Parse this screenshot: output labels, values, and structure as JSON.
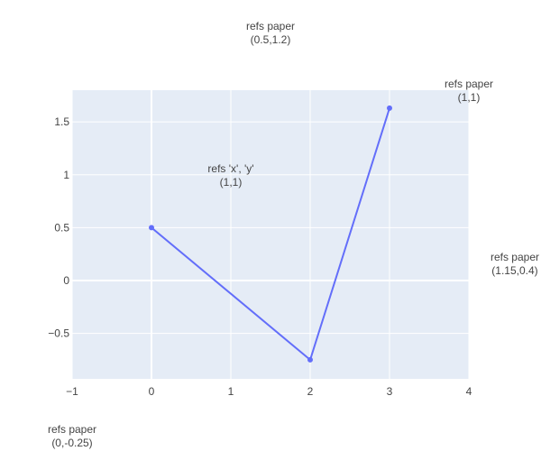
{
  "chart_data": {
    "type": "line",
    "title": "",
    "xlabel": "",
    "ylabel": "",
    "xlim": [
      -1,
      4
    ],
    "ylim": [
      -0.93,
      1.8
    ],
    "grid": true,
    "legend": "none",
    "colors": {
      "plot_bg": "#e5ecf6",
      "grid": "#ffffff",
      "line": "#636efa",
      "text": "#444444"
    },
    "x_ticks": [
      -1,
      0,
      1,
      2,
      3,
      4
    ],
    "x_tick_labels": [
      "−1",
      "0",
      "1",
      "2",
      "3",
      "4"
    ],
    "y_ticks": [
      -0.5,
      0,
      0.5,
      1,
      1.5
    ],
    "y_tick_labels": [
      "−0.5",
      "0",
      "0.5",
      "1",
      "1.5"
    ],
    "series": [
      {
        "x": [
          0,
          2,
          3
        ],
        "y": [
          0.5,
          -0.75,
          1.63
        ],
        "mode": "lines+markers"
      }
    ],
    "annotations": [
      {
        "id": "paper-top",
        "line1": "refs paper",
        "line2": "(0.5,1.2)",
        "ref": "paper",
        "x": 0.5,
        "y": 1.2
      },
      {
        "id": "paper-11",
        "line1": "refs paper",
        "line2": "(1,1)",
        "ref": "paper",
        "x": 1,
        "y": 1
      },
      {
        "id": "data-11",
        "line1": "refs 'x', 'y'",
        "line2": "(1,1)",
        "ref": "data",
        "x": 1,
        "y": 1
      },
      {
        "id": "paper-right",
        "line1": "refs paper",
        "line2": "(1.15,0.4)",
        "ref": "paper",
        "x": 1.15,
        "y": 0.4
      },
      {
        "id": "paper-bottom",
        "line1": "refs paper",
        "line2": "(0,-0.25)",
        "ref": "paper",
        "x": 0,
        "y": -0.25
      }
    ]
  }
}
